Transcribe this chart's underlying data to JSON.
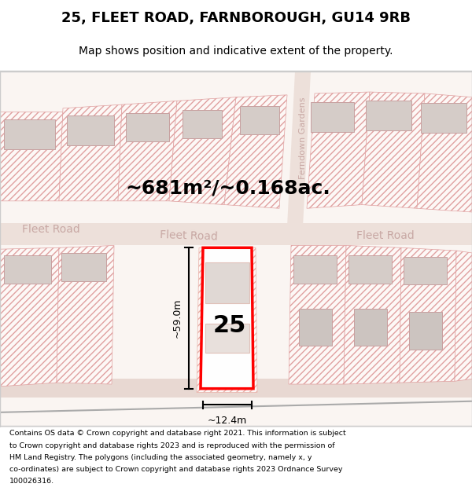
{
  "title": "25, FLEET ROAD, FARNBOROUGH, GU14 9RB",
  "subtitle": "Map shows position and indicative extent of the property.",
  "area_text": "~681m²/~0.168ac.",
  "number_label": "25",
  "width_label": "~12.4m",
  "height_label": "~59.0m",
  "road_label_left": "Fleet Road",
  "road_label_mid": "Fleet Road",
  "road_label_right": "Fleet Road",
  "road_label_vert": "Ferndown Gardens",
  "footer_lines": [
    "Contains OS data © Crown copyright and database right 2021. This information is subject",
    "to Crown copyright and database rights 2023 and is reproduced with the permission of",
    "HM Land Registry. The polygons (including the associated geometry, namely x, y",
    "co-ordinates) are subject to Crown copyright and database rights 2023 Ordnance Survey",
    "100026316."
  ],
  "map_bg": "#faf5f2",
  "figsize": [
    6.0,
    6.25
  ],
  "dpi": 100
}
